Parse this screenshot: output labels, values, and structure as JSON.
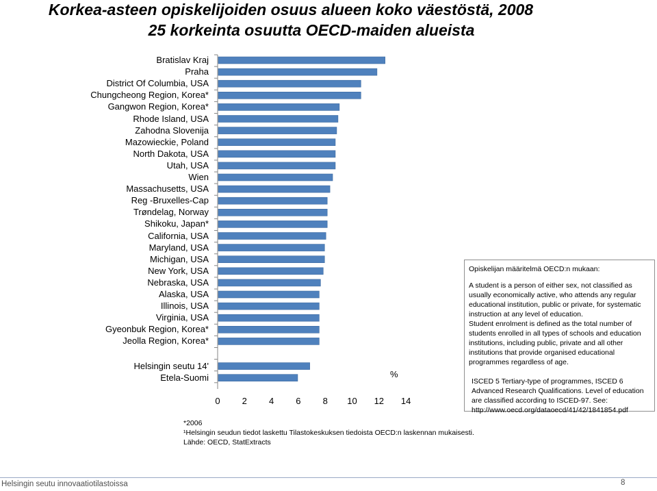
{
  "title_line1": "Korkea-asteen opiskelijoiden osuus alueen koko väestöstä, 2008",
  "title_line2": "25 korkeinta osuutta OECD-maiden alueista",
  "unit_label": "%",
  "colors": {
    "bar": "#4f81bd",
    "bar_edge": "#3c6aa0",
    "axis": "#868686"
  },
  "chart_data": {
    "type": "bar",
    "orientation": "horizontal",
    "categories": [
      "Bratislav Kraj",
      "Praha",
      "District Of Columbia, USA",
      "Chungcheong Region, Korea*",
      "Gangwon Region, Korea*",
      "Rhode Island, USA",
      "Zahodna Slovenija",
      "Mazowieckie, Poland",
      "North Dakota, USA",
      "Utah, USA",
      "Wien",
      "Massachusetts, USA",
      "Reg -Bruxelles-Cap",
      "Trøndelag, Norway",
      "Shikoku, Japan*",
      "California, USA",
      "Maryland, USA",
      "Michigan, USA",
      "New York, USA",
      "Nebraska, USA",
      "Alaska, USA",
      "Illinois, USA",
      "Virginia, USA",
      "Gyeonbuk Region, Korea*",
      "Jeolla Region, Korea*"
    ],
    "values": [
      12.4,
      11.8,
      10.6,
      10.6,
      9.0,
      8.9,
      8.8,
      8.7,
      8.7,
      8.7,
      8.5,
      8.3,
      8.1,
      8.1,
      8.1,
      8.0,
      7.9,
      7.9,
      7.8,
      7.6,
      7.5,
      7.5,
      7.5,
      7.5,
      7.5
    ],
    "extra_categories": [
      "Helsingin seutu 14'",
      "Etela-Suomi"
    ],
    "extra_values": [
      6.8,
      5.9
    ],
    "x_ticks": [
      "0",
      "2",
      "4",
      "6",
      "8",
      "10",
      "12",
      "14"
    ],
    "xlim": [
      0,
      14
    ],
    "grid": false
  },
  "definition": {
    "title": "Opiskelijan määritelmä OECD:n mukaan:",
    "paragraph1": "A student is a person of either sex, not classified as usually economically active, who attends any regular educational institution, public or private, for systematic instruction at any level of education.",
    "paragraph2": "Student enrolment is defined as the total number of students enrolled in all types of schools and education institutions, including public, private and all other institutions that provide organised educational programmes regardless of age.",
    "paragraph3": "ISCED 5 Tertiary-type of programmes, ISCED 6 Advanced Research Qualifications. Level of education are classified according to ISCED-97. See: http://www.oecd.org/dataoecd/41/42/1841854.pdf"
  },
  "footnotes": {
    "line1": "*2006",
    "line2": "¹Helsingin seudun tiedot laskettu Tilastokeskuksen tiedoista OECD:n laskennan mukaisesti.",
    "line3": "Lähde: OECD, StatExtracts"
  },
  "footer": {
    "left": "Helsingin seutu innovaatiotilastoissa",
    "page": "8"
  }
}
